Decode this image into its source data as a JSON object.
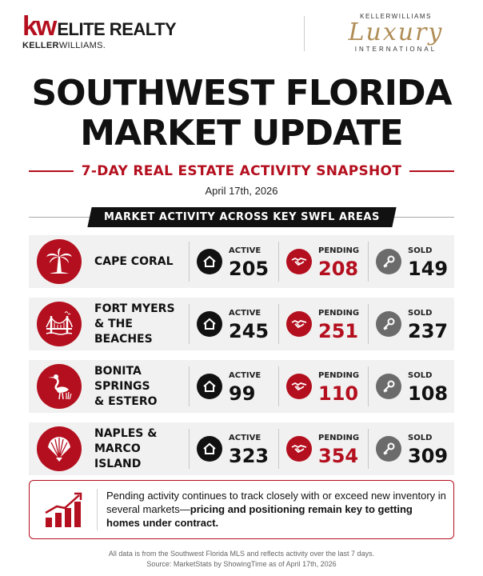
{
  "logos": {
    "kw_mark": "kw",
    "kw_elite": "ELITE REALTY",
    "kw_sub_bold": "KELLER",
    "kw_sub_rest": "WILLIAMS.",
    "lux_top": "KELLERWILLIAMS",
    "lux_main": "Luxury",
    "lux_bottom": "INTERNATIONAL"
  },
  "header": {
    "title_line1": "SOUTHWEST FLORIDA",
    "title_line2": "MARKET UPDATE",
    "subtitle": "7-DAY REAL ESTATE ACTIVITY SNAPSHOT",
    "date": "April 17th, 2026",
    "banner": "MARKET ACTIVITY ACROSS KEY SWFL AREAS"
  },
  "labels": {
    "active": "ACTIVE",
    "pending": "PENDING",
    "sold": "SOLD"
  },
  "areas": [
    {
      "name_line1": "CAPE CORAL",
      "name_line2": "",
      "icon": "palm-tree-icon",
      "active": "205",
      "pending": "208",
      "sold": "149"
    },
    {
      "name_line1": "FORT MYERS",
      "name_line2": "& THE BEACHES",
      "icon": "bridge-icon",
      "active": "245",
      "pending": "251",
      "sold": "237"
    },
    {
      "name_line1": "BONITA SPRINGS",
      "name_line2": "& ESTERO",
      "icon": "heron-icon",
      "active": "99",
      "pending": "110",
      "sold": "108"
    },
    {
      "name_line1": "NAPLES &",
      "name_line2": "MARCO ISLAND",
      "icon": "seashell-icon",
      "active": "323",
      "pending": "354",
      "sold": "309"
    }
  ],
  "icons": {
    "active": "house-icon",
    "pending": "handshake-icon",
    "sold": "key-icon",
    "note": "rising-chart-icon"
  },
  "colors": {
    "brand_red": "#b40f1e",
    "black": "#111111",
    "gray": "#6b6b6b",
    "gold": "#b08d57"
  },
  "note": {
    "text_plain": "Pending activity continues to track closely with or exceed new inventory in several markets—",
    "text_bold": "pricing and positioning remain key to getting homes under contract."
  },
  "footer": {
    "line1": "All data is from the Southwest Florida MLS and reflects activity over the last 7 days.",
    "line2": "Source: MarketStats by ShowingTime as of April 17th, 2026"
  }
}
